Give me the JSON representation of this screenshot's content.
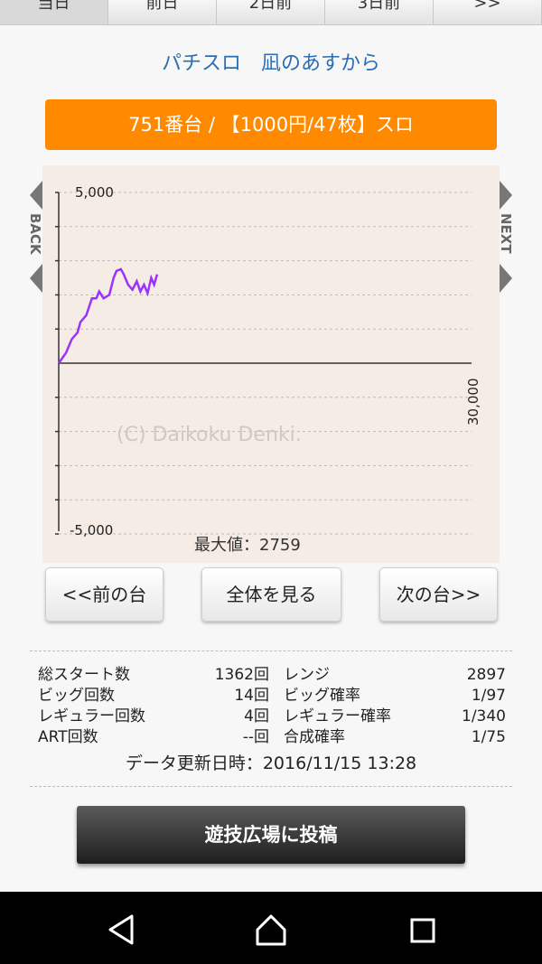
{
  "tabs": [
    "当日",
    "前日",
    "2日前",
    "3日前",
    ">>"
  ],
  "page_title": "パチスロ　凪のあすから",
  "machine_bar": "751番台 / 【1000円/47枚】スロ",
  "graph": {
    "y_top_label": "5,000",
    "y_bottom_label": "-5,000",
    "x_end_label": "30,000",
    "watermark": "(C) Daikoku Denki.",
    "max_label": "最大値：2759",
    "back_label": "BACK",
    "next_label": "NEXT",
    "line_color": "#9b30ff",
    "series_games": [
      0,
      100,
      180,
      260,
      300,
      380,
      460,
      520,
      560,
      620,
      700,
      760,
      800,
      860,
      900,
      960,
      1020,
      1080,
      1130,
      1180,
      1230,
      1280,
      1320,
      1362
    ],
    "series_diff": [
      0,
      300,
      700,
      900,
      1200,
      1400,
      1900,
      1900,
      2100,
      1900,
      2000,
      2500,
      2700,
      2750,
      2600,
      2300,
      2150,
      2400,
      2100,
      2300,
      2050,
      2500,
      2300,
      2600
    ]
  },
  "buttons": {
    "prev": "<<前の台",
    "all": "全体を見る",
    "next": "次の台>>",
    "post": "遊技広場に投稿"
  },
  "stats": [
    {
      "l1": "総スタート数",
      "v1": "1362回",
      "l2": "レンジ",
      "v2": "2897"
    },
    {
      "l1": "ビッグ回数",
      "v1": "14回",
      "l2": "ビッグ確率",
      "v2": "1/97"
    },
    {
      "l1": "レギュラー回数",
      "v1": "4回",
      "l2": "レギュラー確率",
      "v2": "1/340"
    },
    {
      "l1": "ART回数",
      "v1": "--回",
      "l2": "合成確率",
      "v2": "1/75"
    }
  ],
  "updated": "データ更新日時：2016/11/15 13:28"
}
